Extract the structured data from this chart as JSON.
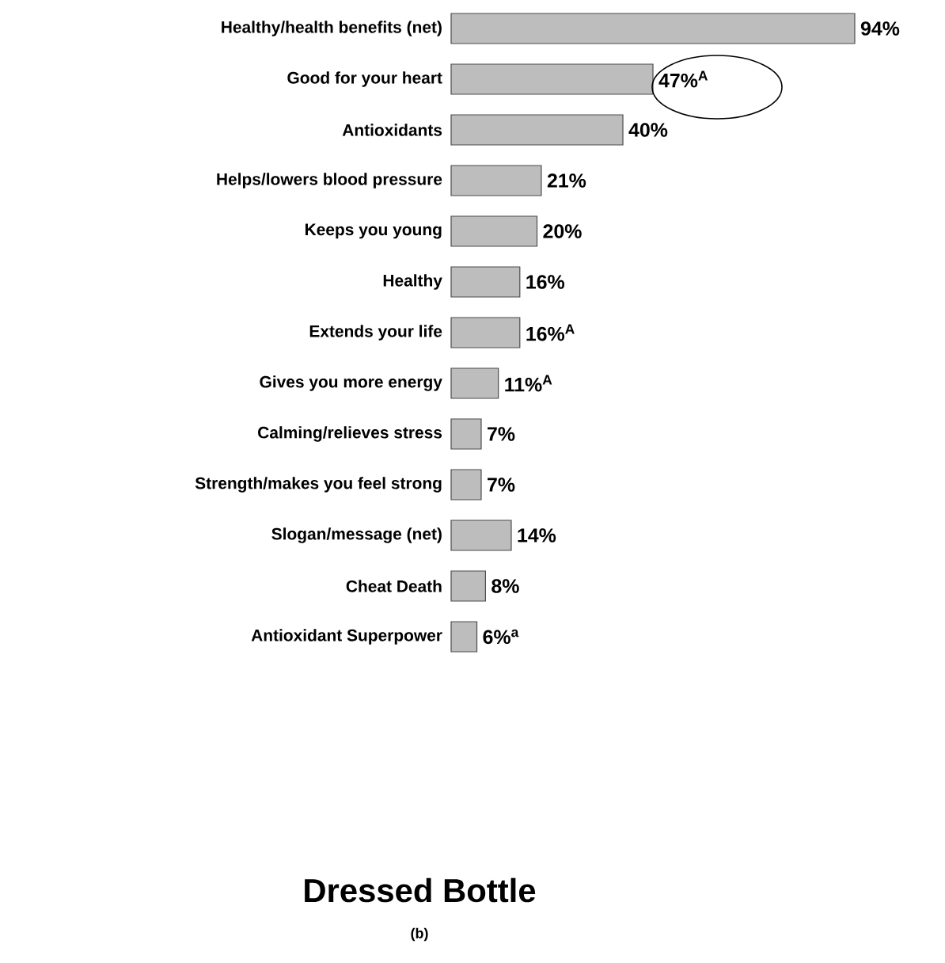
{
  "chart_data": {
    "type": "bar",
    "orientation": "horizontal",
    "title": "Dressed Bottle",
    "categories": [
      "Healthy/health benefits (net)",
      "Good for your heart",
      "Antioxidants",
      "Helps/lowers blood pressure",
      "Keeps you young",
      "Healthy",
      "Extends your life",
      "Gives you more energy",
      "Calming/relieves stress",
      "Strength/makes you feel strong",
      "Slogan/message (net)",
      "Cheat Death",
      "Antioxidant Superpower"
    ],
    "values": [
      94,
      47,
      40,
      21,
      20,
      16,
      16,
      11,
      7,
      7,
      14,
      8,
      6
    ],
    "value_labels": [
      "94%",
      "47%$^{A}$",
      "40%",
      "21%",
      "20%",
      "16%",
      "16%$^{A}$",
      "11%$^{A}$",
      "7%",
      "7%",
      "14%",
      "8%",
      "6%$^{a}$"
    ],
    "color": "#bdbdbd",
    "annotations": [
      "(b)"
    ]
  }
}
